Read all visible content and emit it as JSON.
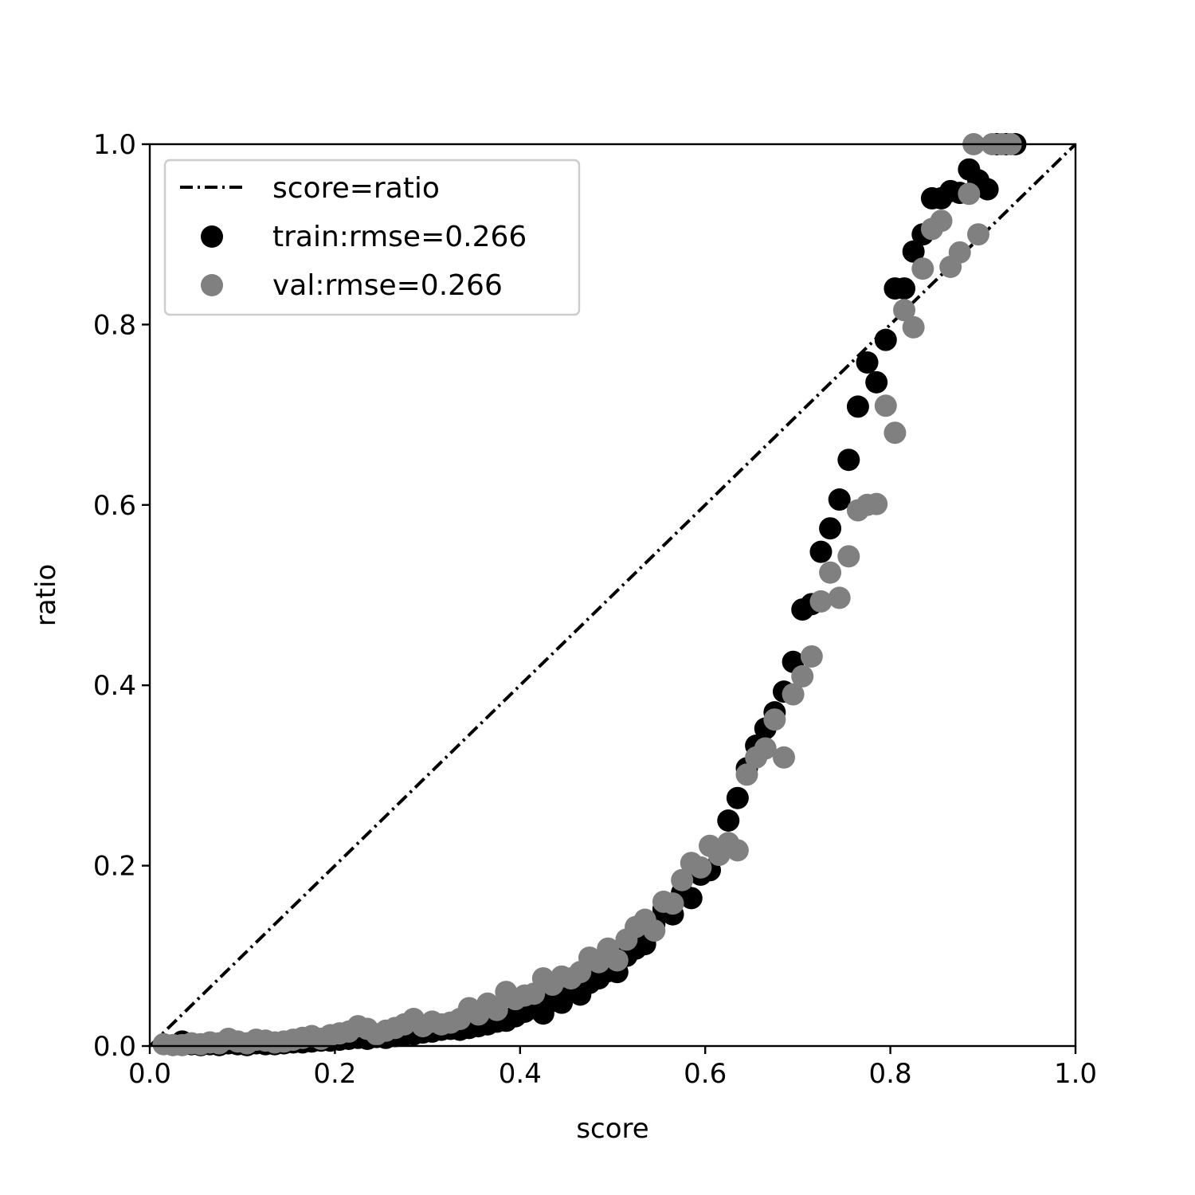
{
  "chart_data": {
    "type": "scatter",
    "xlabel": "score",
    "ylabel": "ratio",
    "xlim": [
      0,
      1
    ],
    "ylim": [
      0,
      1
    ],
    "xticks": [
      "0.0",
      "0.2",
      "0.4",
      "0.6",
      "0.8",
      "1.0"
    ],
    "yticks": [
      "0.0",
      "0.2",
      "0.4",
      "0.6",
      "0.8",
      "1.0"
    ],
    "legend_position": "top-left",
    "grid": false,
    "reference_line": {
      "name": "score=ratio",
      "style": "dash-dot",
      "color": "#000000",
      "points": [
        [
          0,
          0
        ],
        [
          1,
          1
        ]
      ]
    },
    "series": [
      {
        "name": "train:rmse=0.266",
        "color": "#000000",
        "points": [
          [
            0.035,
            0.005
          ],
          [
            0.045,
            0.002
          ],
          [
            0.055,
            0.001
          ],
          [
            0.065,
            0.002
          ],
          [
            0.075,
            0.001
          ],
          [
            0.085,
            0.003
          ],
          [
            0.095,
            0.002
          ],
          [
            0.105,
            0.001
          ],
          [
            0.115,
            0.003
          ],
          [
            0.125,
            0.002
          ],
          [
            0.135,
            0.002
          ],
          [
            0.145,
            0.003
          ],
          [
            0.155,
            0.004
          ],
          [
            0.165,
            0.004
          ],
          [
            0.175,
            0.005
          ],
          [
            0.185,
            0.006
          ],
          [
            0.195,
            0.006
          ],
          [
            0.205,
            0.007
          ],
          [
            0.215,
            0.008
          ],
          [
            0.225,
            0.009
          ],
          [
            0.235,
            0.008
          ],
          [
            0.245,
            0.01
          ],
          [
            0.255,
            0.009
          ],
          [
            0.265,
            0.011
          ],
          [
            0.275,
            0.012
          ],
          [
            0.285,
            0.013
          ],
          [
            0.295,
            0.015
          ],
          [
            0.305,
            0.016
          ],
          [
            0.315,
            0.018
          ],
          [
            0.325,
            0.019
          ],
          [
            0.335,
            0.018
          ],
          [
            0.345,
            0.02
          ],
          [
            0.355,
            0.022
          ],
          [
            0.365,
            0.024
          ],
          [
            0.375,
            0.027
          ],
          [
            0.385,
            0.028
          ],
          [
            0.395,
            0.033
          ],
          [
            0.405,
            0.038
          ],
          [
            0.415,
            0.042
          ],
          [
            0.425,
            0.036
          ],
          [
            0.435,
            0.05
          ],
          [
            0.445,
            0.048
          ],
          [
            0.455,
            0.06
          ],
          [
            0.465,
            0.057
          ],
          [
            0.475,
            0.07
          ],
          [
            0.485,
            0.075
          ],
          [
            0.495,
            0.083
          ],
          [
            0.505,
            0.082
          ],
          [
            0.515,
            0.1
          ],
          [
            0.525,
            0.108
          ],
          [
            0.535,
            0.113
          ],
          [
            0.545,
            0.135
          ],
          [
            0.555,
            0.152
          ],
          [
            0.565,
            0.146
          ],
          [
            0.575,
            0.17
          ],
          [
            0.585,
            0.164
          ],
          [
            0.595,
            0.19
          ],
          [
            0.605,
            0.195
          ],
          [
            0.615,
            0.215
          ],
          [
            0.625,
            0.25
          ],
          [
            0.635,
            0.275
          ],
          [
            0.645,
            0.308
          ],
          [
            0.655,
            0.333
          ],
          [
            0.665,
            0.352
          ],
          [
            0.675,
            0.37
          ],
          [
            0.685,
            0.393
          ],
          [
            0.695,
            0.426
          ],
          [
            0.705,
            0.484
          ],
          [
            0.715,
            0.49
          ],
          [
            0.725,
            0.548
          ],
          [
            0.735,
            0.574
          ],
          [
            0.745,
            0.606
          ],
          [
            0.755,
            0.65
          ],
          [
            0.765,
            0.709
          ],
          [
            0.775,
            0.758
          ],
          [
            0.785,
            0.736
          ],
          [
            0.795,
            0.783
          ],
          [
            0.805,
            0.84
          ],
          [
            0.815,
            0.84
          ],
          [
            0.825,
            0.881
          ],
          [
            0.835,
            0.9
          ],
          [
            0.845,
            0.94
          ],
          [
            0.855,
            0.94
          ],
          [
            0.865,
            0.948
          ],
          [
            0.875,
            0.946
          ],
          [
            0.885,
            0.972
          ],
          [
            0.895,
            0.96
          ],
          [
            0.905,
            0.95
          ],
          [
            0.915,
            1.0
          ],
          [
            0.925,
            1.0
          ],
          [
            0.935,
            1.0
          ]
        ]
      },
      {
        "name": "val:rmse=0.266",
        "color": "#808080",
        "points": [
          [
            0.015,
            0.002
          ],
          [
            0.025,
            0.001
          ],
          [
            0.035,
            0.001
          ],
          [
            0.045,
            0.003
          ],
          [
            0.055,
            0.002
          ],
          [
            0.065,
            0.004
          ],
          [
            0.075,
            0.003
          ],
          [
            0.085,
            0.008
          ],
          [
            0.095,
            0.005
          ],
          [
            0.105,
            0.003
          ],
          [
            0.115,
            0.007
          ],
          [
            0.125,
            0.006
          ],
          [
            0.135,
            0.004
          ],
          [
            0.145,
            0.005
          ],
          [
            0.155,
            0.007
          ],
          [
            0.165,
            0.009
          ],
          [
            0.175,
            0.011
          ],
          [
            0.185,
            0.008
          ],
          [
            0.195,
            0.012
          ],
          [
            0.205,
            0.014
          ],
          [
            0.215,
            0.016
          ],
          [
            0.225,
            0.022
          ],
          [
            0.235,
            0.019
          ],
          [
            0.245,
            0.013
          ],
          [
            0.255,
            0.017
          ],
          [
            0.265,
            0.02
          ],
          [
            0.275,
            0.024
          ],
          [
            0.285,
            0.03
          ],
          [
            0.295,
            0.022
          ],
          [
            0.305,
            0.027
          ],
          [
            0.315,
            0.024
          ],
          [
            0.325,
            0.026
          ],
          [
            0.335,
            0.03
          ],
          [
            0.345,
            0.042
          ],
          [
            0.355,
            0.035
          ],
          [
            0.365,
            0.047
          ],
          [
            0.375,
            0.04
          ],
          [
            0.385,
            0.06
          ],
          [
            0.395,
            0.052
          ],
          [
            0.405,
            0.056
          ],
          [
            0.415,
            0.058
          ],
          [
            0.425,
            0.075
          ],
          [
            0.435,
            0.068
          ],
          [
            0.445,
            0.077
          ],
          [
            0.455,
            0.075
          ],
          [
            0.465,
            0.082
          ],
          [
            0.475,
            0.098
          ],
          [
            0.485,
            0.093
          ],
          [
            0.495,
            0.108
          ],
          [
            0.505,
            0.095
          ],
          [
            0.515,
            0.118
          ],
          [
            0.525,
            0.132
          ],
          [
            0.535,
            0.14
          ],
          [
            0.545,
            0.128
          ],
          [
            0.555,
            0.16
          ],
          [
            0.565,
            0.158
          ],
          [
            0.575,
            0.184
          ],
          [
            0.585,
            0.203
          ],
          [
            0.595,
            0.198
          ],
          [
            0.605,
            0.222
          ],
          [
            0.615,
            0.212
          ],
          [
            0.625,
            0.225
          ],
          [
            0.635,
            0.217
          ],
          [
            0.645,
            0.301
          ],
          [
            0.655,
            0.32
          ],
          [
            0.665,
            0.33
          ],
          [
            0.675,
            0.362
          ],
          [
            0.685,
            0.32
          ],
          [
            0.695,
            0.39
          ],
          [
            0.705,
            0.41
          ],
          [
            0.715,
            0.432
          ],
          [
            0.725,
            0.493
          ],
          [
            0.735,
            0.525
          ],
          [
            0.745,
            0.497
          ],
          [
            0.755,
            0.543
          ],
          [
            0.765,
            0.594
          ],
          [
            0.775,
            0.6
          ],
          [
            0.785,
            0.601
          ],
          [
            0.795,
            0.71
          ],
          [
            0.805,
            0.68
          ],
          [
            0.815,
            0.816
          ],
          [
            0.825,
            0.797
          ],
          [
            0.835,
            0.862
          ],
          [
            0.845,
            0.906
          ],
          [
            0.855,
            0.915
          ],
          [
            0.865,
            0.864
          ],
          [
            0.875,
            0.88
          ],
          [
            0.885,
            0.945
          ],
          [
            0.895,
            0.9
          ],
          [
            0.89,
            1.0
          ],
          [
            0.91,
            1.0
          ],
          [
            0.92,
            1.0
          ],
          [
            0.93,
            1.0
          ]
        ]
      }
    ]
  }
}
